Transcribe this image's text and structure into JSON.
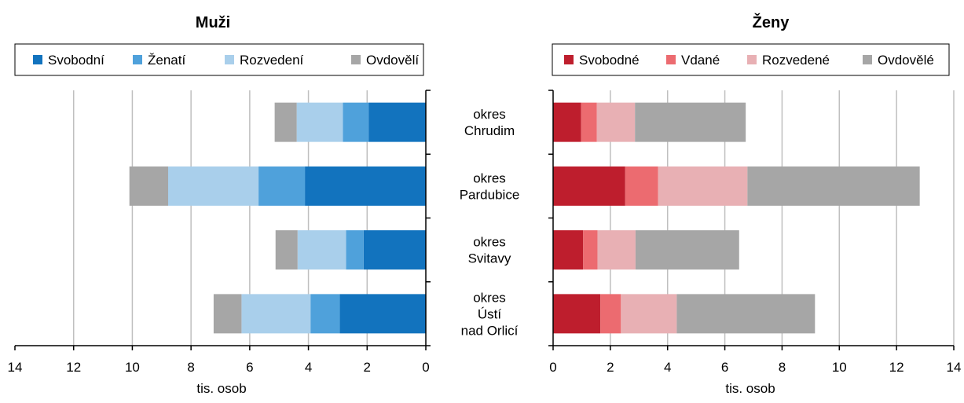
{
  "chart_data": [
    {
      "type": "bar",
      "orientation": "horizontal",
      "stacked": true,
      "title": "Muži",
      "xlabel": "tis. osob",
      "xlim": [
        0,
        14
      ],
      "x_reversed": true,
      "xticks": [
        "14",
        "12",
        "10",
        "8",
        "6",
        "4",
        "2",
        "0"
      ],
      "legend_position": "top",
      "grid": true,
      "categories": [
        "okres Chrudim",
        "okres Pardubice",
        "okres Svitavy",
        "okres Ústí nad Orlicí"
      ],
      "series": [
        {
          "name": "Svobodní",
          "color": "#1273be",
          "values": [
            1.95,
            4.12,
            2.12,
            2.93
          ]
        },
        {
          "name": "Ženatí",
          "color": "#4fa1db",
          "values": [
            0.88,
            1.58,
            0.6,
            1.0
          ]
        },
        {
          "name": "Rozvedení",
          "color": "#a9cfeb",
          "values": [
            1.57,
            3.08,
            1.65,
            2.35
          ]
        },
        {
          "name": "Ovdovělí",
          "color": "#a6a6a6",
          "values": [
            0.75,
            1.32,
            0.75,
            0.95
          ]
        }
      ]
    },
    {
      "type": "bar",
      "orientation": "horizontal",
      "stacked": true,
      "title": "Ženy",
      "xlabel": "tis. osob",
      "xlim": [
        0,
        14
      ],
      "xticks": [
        "0",
        "2",
        "4",
        "6",
        "8",
        "10",
        "12",
        "14"
      ],
      "legend_position": "top",
      "grid": true,
      "categories": [
        "okres Chrudim",
        "okres Pardubice",
        "okres Svitavy",
        "okres Ústí nad Orlicí"
      ],
      "series": [
        {
          "name": "Svobodné",
          "color": "#be1e2d",
          "values": [
            0.98,
            2.52,
            1.05,
            1.65
          ]
        },
        {
          "name": "Vdané",
          "color": "#ec6b70",
          "values": [
            0.55,
            1.15,
            0.5,
            0.72
          ]
        },
        {
          "name": "Rozvedené",
          "color": "#e8b0b4",
          "values": [
            1.33,
            3.12,
            1.33,
            1.95
          ]
        },
        {
          "name": "Ovdovělé",
          "color": "#a6a6a6",
          "values": [
            3.87,
            6.02,
            3.62,
            4.83
          ]
        }
      ]
    }
  ],
  "categories_display": [
    [
      "okres",
      "Chrudim"
    ],
    [
      "okres",
      "Pardubice"
    ],
    [
      "okres",
      "Svitavy"
    ],
    [
      "okres",
      "Ústí",
      "nad Orlicí"
    ]
  ]
}
